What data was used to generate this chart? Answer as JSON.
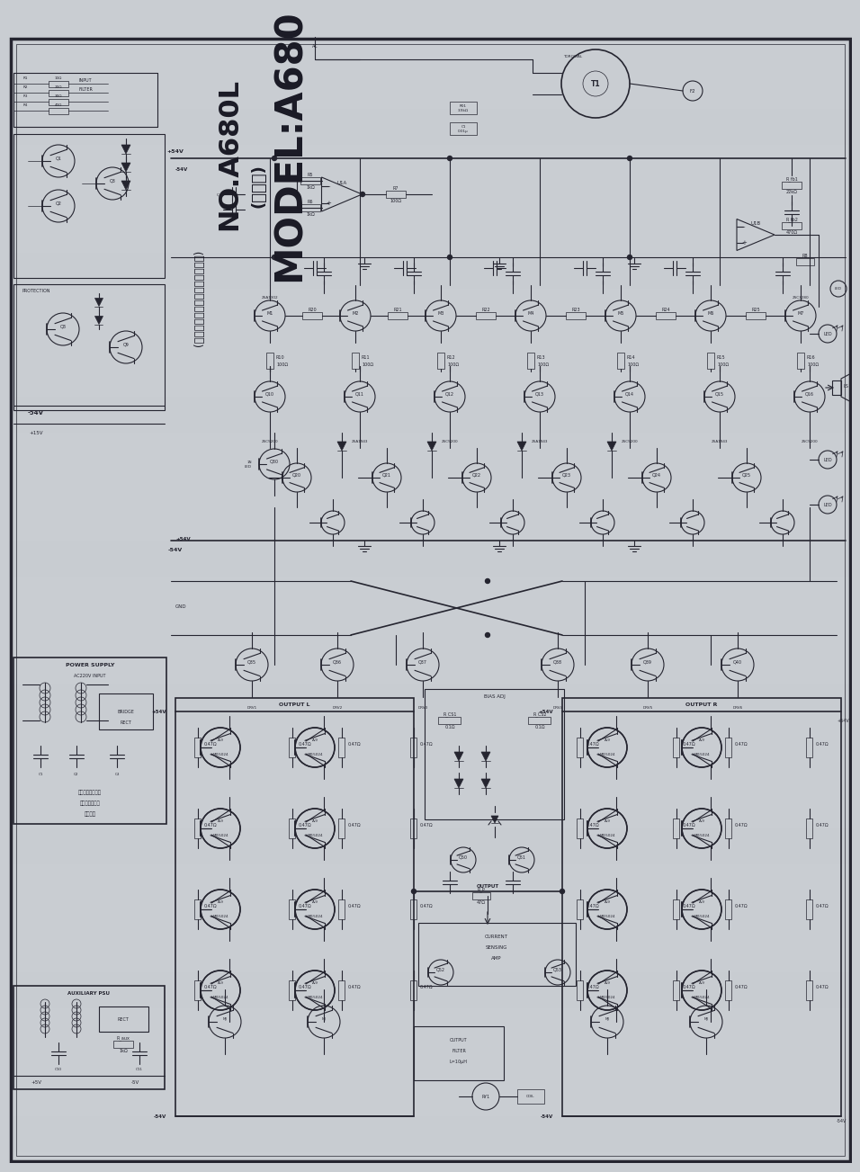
{
  "bg_color": "#c9cdd2",
  "line_color": "#252530",
  "title": "MODEL:A680",
  "subtitle": "(全波子)",
  "model_label": "NO.A680L",
  "desc_line1": "(左声道原理图，右声道对称参考)",
  "figsize": [
    9.37,
    12.52
  ],
  "dpi": 100
}
